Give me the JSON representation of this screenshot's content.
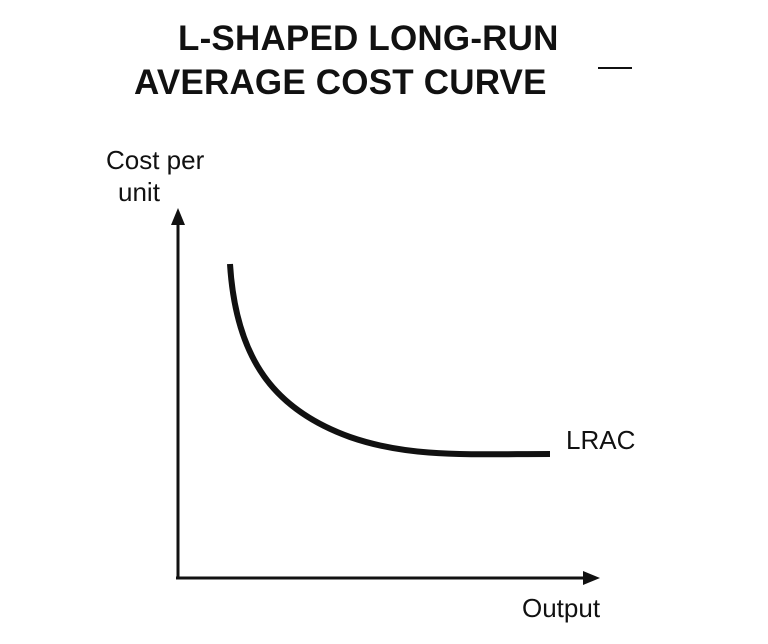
{
  "title": {
    "line1": "L-SHAPED LONG-RUN",
    "line2": "AVERAGE COST CURVE"
  },
  "axes": {
    "y_label_line1": "Cost per",
    "y_label_line2": "unit",
    "x_label": "Output"
  },
  "curve": {
    "label": "LRAC",
    "shape": "L-shaped: falls steeply then flattens",
    "color": "#111111"
  }
}
